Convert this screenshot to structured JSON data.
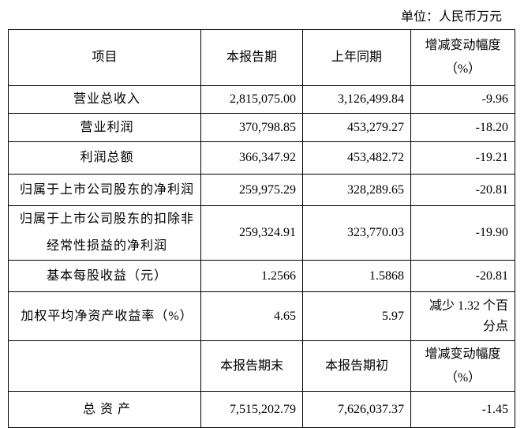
{
  "unit": "单位：人民币万元",
  "table": {
    "header": [
      "项目",
      "本报告期",
      "上年同期",
      "增减变动幅度（%）"
    ],
    "rows": [
      [
        "营业总收入",
        "2,815,075.00",
        "3,126,499.84",
        "-9.96"
      ],
      [
        "营业利润",
        "370,798.85",
        "453,279.27",
        "-18.20"
      ],
      [
        "利润总额",
        "366,347.92",
        "453,482.72",
        "-19.21"
      ],
      [
        "归属于上市公司股东的净利润",
        "259,975.29",
        "328,289.65",
        "-20.81"
      ],
      [
        "归属于上市公司股东的扣除非经常性损益的净利润",
        "259,324.91",
        "323,770.03",
        "-19.90"
      ],
      [
        "基本每股收益（元）",
        "1.2566",
        "1.5868",
        "-20.81"
      ],
      [
        "加权平均净资产收益率（%）",
        "4.65",
        "5.97",
        "减少 1.32 个百分点"
      ]
    ],
    "header2": [
      "本报告期末",
      "本报告期初",
      "增减变动幅度（%）"
    ],
    "rows2": [
      [
        "总 资 产",
        "7,515,202.79",
        "7,626,037.37",
        "-1.45"
      ]
    ]
  }
}
